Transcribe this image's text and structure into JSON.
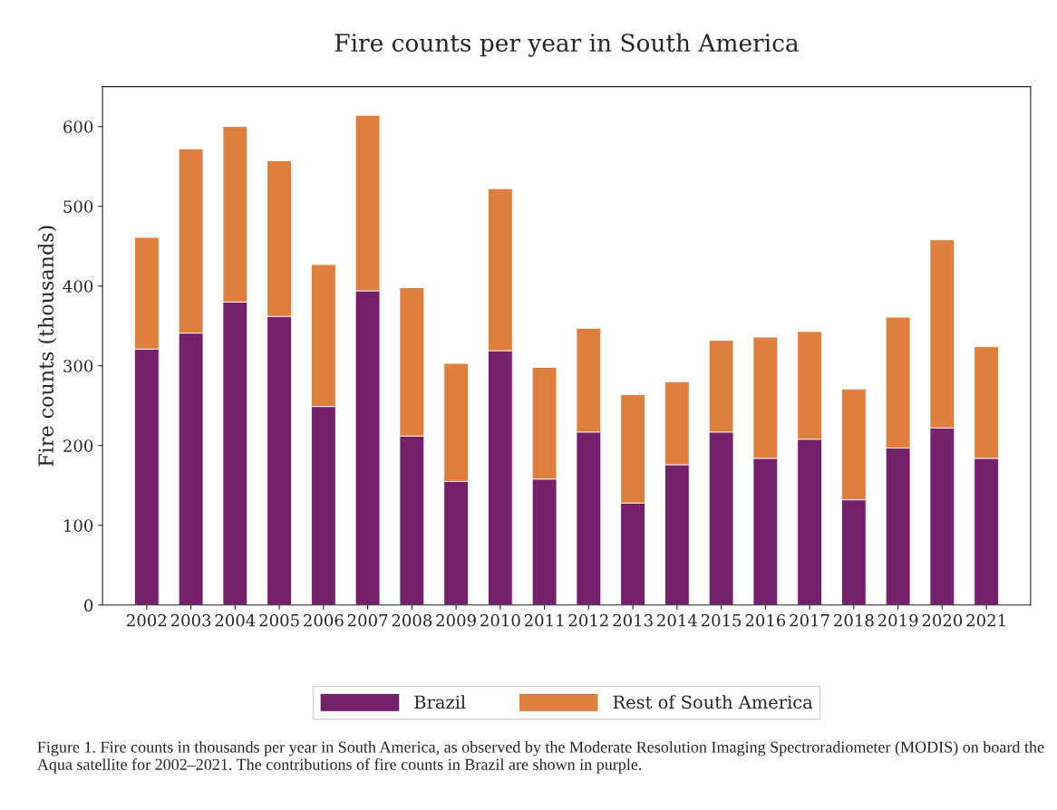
{
  "chart_data": {
    "type": "bar",
    "stacked": true,
    "title": "Fire counts per year in South America",
    "ylabel": "Fire counts (thousands)",
    "categories": [
      "2002",
      "2003",
      "2004",
      "2005",
      "2006",
      "2007",
      "2008",
      "2009",
      "2010",
      "2011",
      "2012",
      "2013",
      "2014",
      "2015",
      "2016",
      "2017",
      "2018",
      "2019",
      "2020",
      "2021"
    ],
    "series": [
      {
        "name": "Brazil",
        "color": "#74206b",
        "values": [
          321,
          341,
          380,
          362,
          249,
          394,
          212,
          155,
          319,
          158,
          217,
          128,
          176,
          217,
          184,
          208,
          132,
          197,
          222,
          184
        ]
      },
      {
        "name": "Rest of South America",
        "color": "#df7f3f",
        "values": [
          140,
          231,
          220,
          195,
          178,
          220,
          186,
          148,
          203,
          140,
          130,
          136,
          104,
          115,
          152,
          135,
          139,
          164,
          236,
          140
        ]
      }
    ],
    "ylim": [
      0,
      650
    ],
    "yticks": [
      0,
      100,
      200,
      300,
      400,
      500,
      600
    ],
    "grid": false,
    "legend": "bottom",
    "annotations": [
      "Figure 1. Fire counts in thousands per year in South America, as observed by the Moderate Resolution Imaging Spectroradiometer (MODIS) on board the Aqua satellite for 2002–2021. The contributions of fire counts in Brazil are shown in purple."
    ]
  }
}
